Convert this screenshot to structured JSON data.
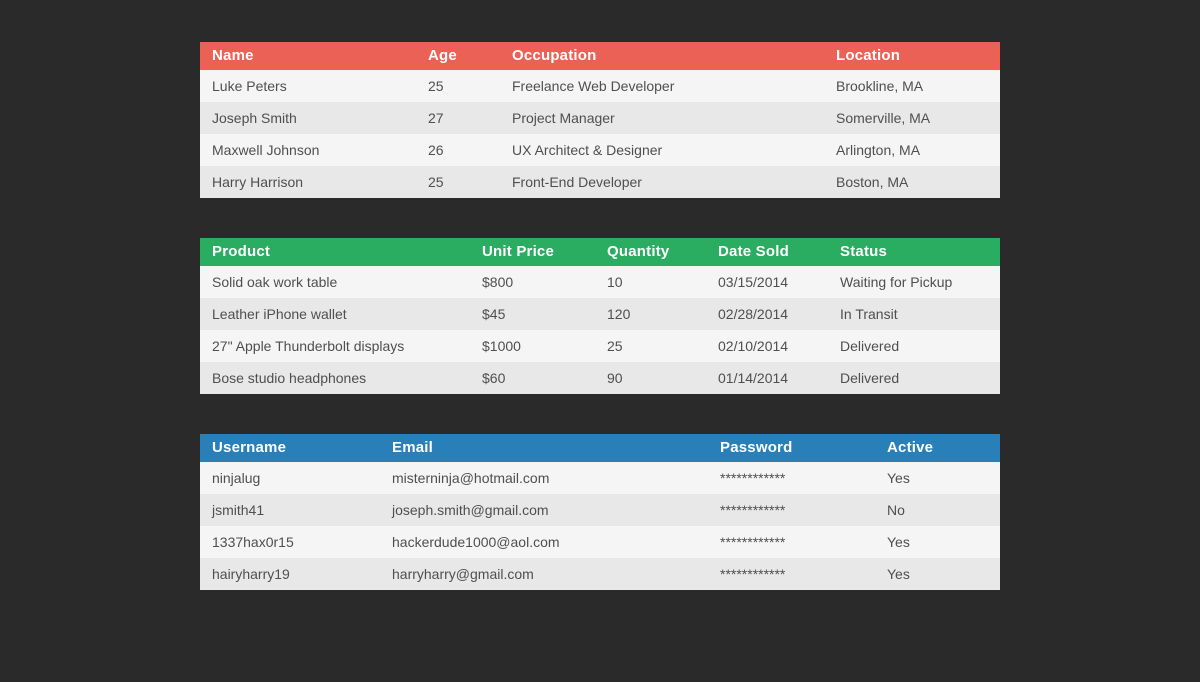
{
  "page": {
    "background_color": "#2a2a2a",
    "row_stripe_light": "#f5f5f5",
    "row_stripe_dark": "#e8e8e8"
  },
  "tables": [
    {
      "name": "people",
      "accent_color": "#eb6156",
      "columns": [
        "Name",
        "Age",
        "Occupation",
        "Location"
      ],
      "rows": [
        [
          "Luke Peters",
          "25",
          "Freelance Web Developer",
          "Brookline, MA"
        ],
        [
          "Joseph Smith",
          "27",
          "Project Manager",
          "Somerville, MA"
        ],
        [
          "Maxwell Johnson",
          "26",
          "UX Architect & Designer",
          "Arlington, MA"
        ],
        [
          "Harry Harrison",
          "25",
          "Front-End Developer",
          "Boston, MA"
        ]
      ]
    },
    {
      "name": "sales",
      "accent_color": "#2aac61",
      "columns": [
        "Product",
        "Unit Price",
        "Quantity",
        "Date Sold",
        "Status"
      ],
      "rows": [
        [
          "Solid oak work table",
          "$800",
          "10",
          "03/15/2014",
          "Waiting for Pickup"
        ],
        [
          "Leather iPhone wallet",
          "$45",
          "120",
          "02/28/2014",
          "In Transit"
        ],
        [
          "27\" Apple Thunderbolt displays",
          "$1000",
          "25",
          "02/10/2014",
          "Delivered"
        ],
        [
          "Bose studio headphones",
          "$60",
          "90",
          "01/14/2014",
          "Delivered"
        ]
      ]
    },
    {
      "name": "users",
      "accent_color": "#2980b9",
      "columns": [
        "Username",
        "Email",
        "Password",
        "Active"
      ],
      "rows": [
        [
          "ninjalug",
          "misterninja@hotmail.com",
          "************",
          "Yes"
        ],
        [
          "jsmith41",
          "joseph.smith@gmail.com",
          "************",
          "No"
        ],
        [
          "1337hax0r15",
          "hackerdude1000@aol.com",
          "************",
          "Yes"
        ],
        [
          "hairyharry19",
          "harryharry@gmail.com",
          "************",
          "Yes"
        ]
      ]
    }
  ]
}
